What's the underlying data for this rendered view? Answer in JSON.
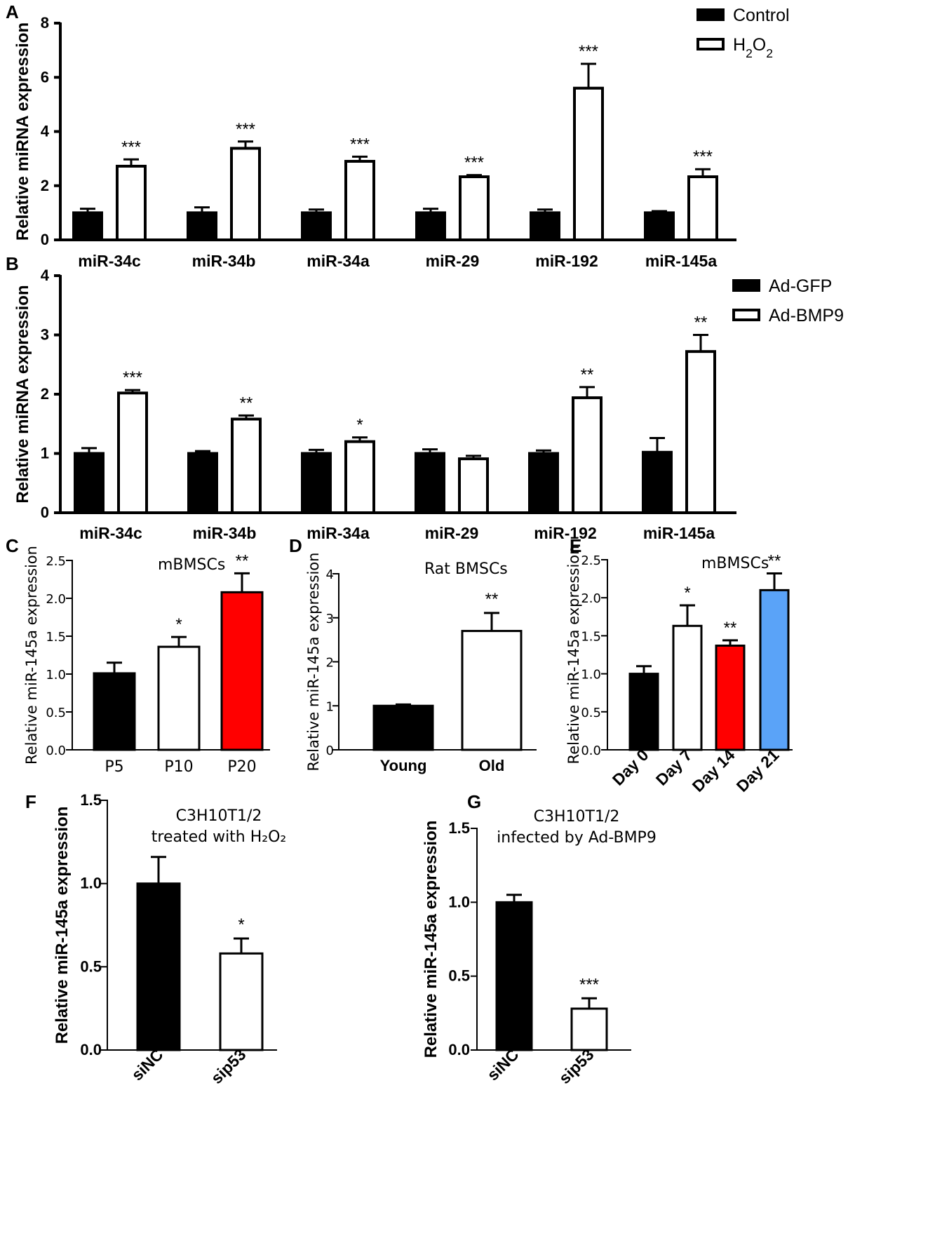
{
  "chart_data": [
    {
      "id": "A",
      "type": "bar",
      "panel_label": "A",
      "ylabel": "Relative miRNA expression",
      "ylim": [
        0,
        8
      ],
      "yticks": [
        0,
        2,
        4,
        6,
        8
      ],
      "categories": [
        "miR-34c",
        "miR-34b",
        "miR-34a",
        "miR-29",
        "miR-192",
        "miR-145a"
      ],
      "series": [
        {
          "name": "Control",
          "values": [
            1.0,
            1.0,
            1.0,
            1.0,
            1.0,
            1.0
          ],
          "errors": [
            0.15,
            0.2,
            0.12,
            0.15,
            0.12,
            0.06
          ],
          "fill": "#000000",
          "stars": [
            "",
            "",
            "",
            "",
            "",
            ""
          ]
        },
        {
          "name": "H2O2",
          "values": [
            2.72,
            3.38,
            2.9,
            2.33,
            5.6,
            2.33
          ],
          "errors": [
            0.25,
            0.25,
            0.17,
            0.06,
            0.9,
            0.28
          ],
          "fill": "#ffffff",
          "stars": [
            "***",
            "***",
            "***",
            "***",
            "***",
            "***"
          ]
        }
      ]
    },
    {
      "id": "B",
      "type": "bar",
      "panel_label": "B",
      "ylabel": "Relative miRNA expression",
      "ylim": [
        0,
        4
      ],
      "yticks": [
        0,
        1,
        2,
        3,
        4
      ],
      "categories": [
        "miR-34c",
        "miR-34b",
        "miR-34a",
        "miR-29",
        "miR-192",
        "miR-145a"
      ],
      "series": [
        {
          "name": "Ad-GFP",
          "values": [
            1.0,
            1.0,
            1.0,
            1.0,
            1.0,
            1.02
          ],
          "errors": [
            0.09,
            0.04,
            0.06,
            0.07,
            0.05,
            0.24
          ],
          "fill": "#000000",
          "stars": [
            "",
            "",
            "",
            "",
            "",
            ""
          ]
        },
        {
          "name": "Ad-BMP9",
          "values": [
            2.02,
            1.58,
            1.2,
            0.91,
            1.94,
            2.72
          ],
          "errors": [
            0.05,
            0.06,
            0.07,
            0.05,
            0.18,
            0.28
          ],
          "fill": "#ffffff",
          "stars": [
            "***",
            "**",
            "*",
            "",
            "**",
            "**"
          ]
        }
      ]
    },
    {
      "id": "C",
      "type": "bar",
      "panel_label": "C",
      "title": "mBMSCs",
      "ylabel": "Relative miR-145a expression",
      "ylim": [
        0,
        2.5
      ],
      "yticks": [
        "0.0",
        "0.5",
        "1.0",
        "1.5",
        "2.0",
        "2.5"
      ],
      "categories": [
        "P5",
        "P10",
        "P20"
      ],
      "values": [
        1.01,
        1.36,
        2.08
      ],
      "errors": [
        0.14,
        0.13,
        0.25
      ],
      "fills": [
        "#000000",
        "#ffffff",
        "#ff0000"
      ],
      "stars": [
        "",
        "*",
        "**"
      ]
    },
    {
      "id": "D",
      "type": "bar",
      "panel_label": "D",
      "title": "Rat BMSCs",
      "ylabel": "Relative miR-145a expression",
      "ylim": [
        0,
        4
      ],
      "yticks": [
        "0",
        "1",
        "2",
        "3",
        "4"
      ],
      "categories": [
        "Young",
        "Old"
      ],
      "values": [
        1.0,
        2.7
      ],
      "errors": [
        0.03,
        0.41
      ],
      "fills": [
        "#000000",
        "#ffffff"
      ],
      "stars": [
        "",
        "**"
      ]
    },
    {
      "id": "E",
      "type": "bar",
      "panel_label": "E",
      "title": "mBMSCs",
      "ylabel": "Relative miR-145a expression",
      "ylim": [
        0,
        2.5
      ],
      "yticks": [
        "0.0",
        "0.5",
        "1.0",
        "1.5",
        "2.0",
        "2.5"
      ],
      "categories": [
        "Day 0",
        "Day 7",
        "Day 14",
        "Day 21"
      ],
      "values": [
        1.0,
        1.63,
        1.37,
        2.1
      ],
      "errors": [
        0.1,
        0.27,
        0.07,
        0.22
      ],
      "fills": [
        "#000000",
        "#ffffff",
        "#ff0000",
        "#5aa3f8"
      ],
      "stars": [
        "",
        "*",
        "**",
        "**"
      ]
    },
    {
      "id": "F",
      "type": "bar",
      "panel_label": "F",
      "title_lines": [
        "C3H10T1/2",
        "treated with H₂O₂"
      ],
      "ylabel": "Relative miR-145a expression",
      "ylim": [
        0,
        1.5
      ],
      "yticks": [
        "0.0",
        "0.5",
        "1.0",
        "1.5"
      ],
      "categories": [
        "siNC",
        "sip53"
      ],
      "values": [
        1.0,
        0.58
      ],
      "errors": [
        0.16,
        0.09
      ],
      "fills": [
        "#000000",
        "#ffffff"
      ],
      "stars": [
        "",
        "*"
      ]
    },
    {
      "id": "G",
      "type": "bar",
      "panel_label": "G",
      "title_lines": [
        "C3H10T1/2",
        "infected by Ad-BMP9"
      ],
      "ylabel": "Relative miR-145a expression",
      "ylim": [
        0,
        1.5
      ],
      "yticks": [
        "0.0",
        "0.5",
        "1.0",
        "1.5"
      ],
      "categories": [
        "siNC",
        "sip53"
      ],
      "values": [
        1.0,
        0.28
      ],
      "errors": [
        0.05,
        0.07
      ],
      "fills": [
        "#000000",
        "#ffffff"
      ],
      "stars": [
        "",
        "***"
      ]
    }
  ]
}
